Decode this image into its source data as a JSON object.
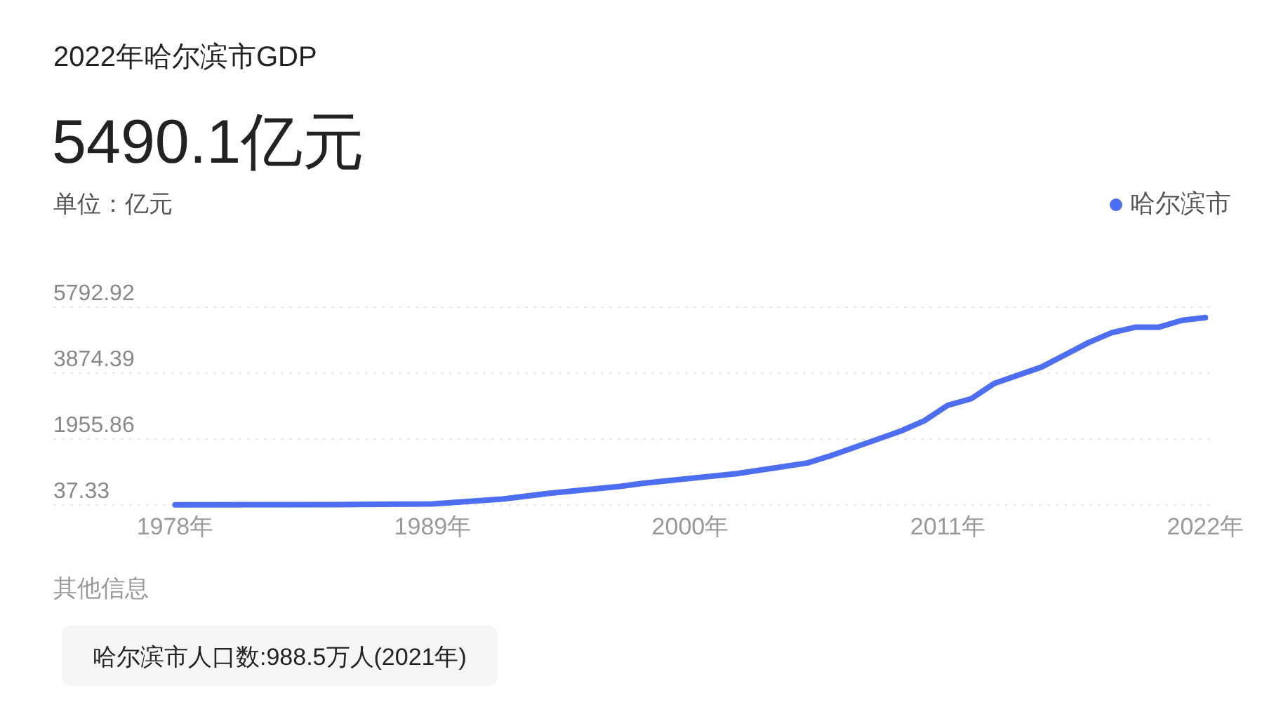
{
  "chart_data": {
    "type": "line",
    "title": "2022年哈尔滨市GDP",
    "subtitle": "5490.1亿元",
    "ylabel": "单位：亿元",
    "annotations": [
      "其他信息",
      "哈尔滨市人口数:988.5万人(2021年)"
    ],
    "x": [
      1978,
      1985,
      1989,
      1992,
      1994,
      1997,
      1998,
      2002,
      2005,
      2006,
      2009,
      2010,
      2011,
      2012,
      2013,
      2015,
      2017,
      2018,
      2019,
      2020,
      2021,
      2022
    ],
    "series": [
      {
        "name": "哈尔滨市",
        "color": "#4e6ef2",
        "values": [
          40,
          50,
          70,
          210,
          380,
          580,
          670,
          950,
          1260,
          1470,
          2190,
          2490,
          2940,
          3130,
          3580,
          4050,
          4760,
          5050,
          5210,
          5210,
          5410,
          5490.1
        ]
      }
    ],
    "xlim": [
      1972.8,
      2022.2
    ],
    "xticks": [
      {
        "value": 1978,
        "label": "1978年"
      },
      {
        "value": 1989,
        "label": "1989年"
      },
      {
        "value": 2000,
        "label": "2000年"
      },
      {
        "value": 2011,
        "label": "2011年"
      },
      {
        "value": 2022,
        "label": "2022年"
      }
    ],
    "ylim": [
      37.33,
      5792.92
    ],
    "yticks": [
      37.33,
      1955.86,
      3874.39,
      5792.92
    ],
    "grid": "y",
    "legend": "top right"
  }
}
